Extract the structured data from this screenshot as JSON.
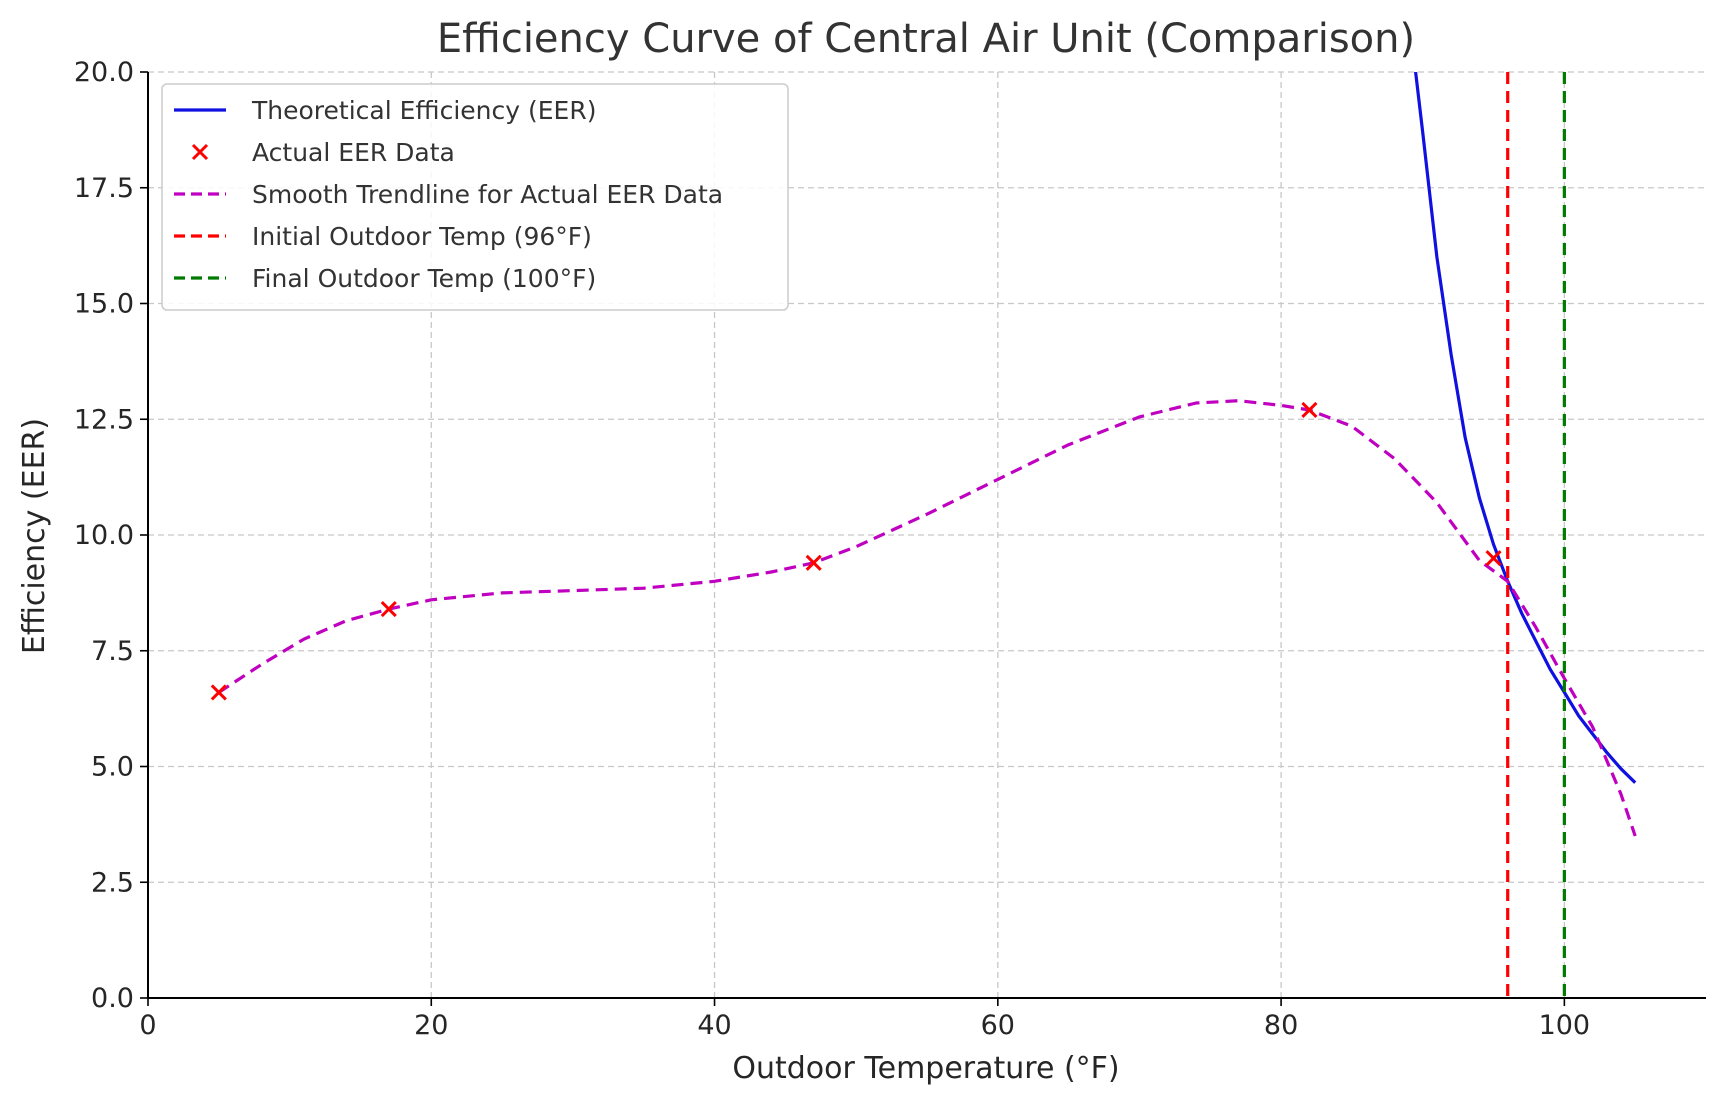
{
  "chart_data": {
    "type": "line",
    "title": "Efficiency Curve of Central Air Unit (Comparison)",
    "xlabel": "Outdoor Temperature (°F)",
    "ylabel": "Efficiency (EER)",
    "xlim": [
      0,
      110
    ],
    "ylim": [
      0,
      20
    ],
    "xticks": [
      0,
      20,
      40,
      60,
      80,
      100
    ],
    "xtick_labels": [
      "0",
      "20",
      "40",
      "60",
      "80",
      "100"
    ],
    "yticks": [
      0,
      2.5,
      5,
      7.5,
      10,
      12.5,
      15,
      17.5,
      20
    ],
    "ytick_labels": [
      "0.0",
      "2.5",
      "5.0",
      "7.5",
      "10.0",
      "12.5",
      "15.0",
      "17.5",
      "20.0"
    ],
    "grid": true,
    "legend_position": "top-left",
    "series": [
      {
        "name": "Theoretical Efficiency (EER)",
        "kind": "line",
        "style": "solid",
        "color": "#1010e0",
        "x": [
          89.5,
          90,
          91,
          92,
          93,
          94,
          95,
          96,
          97,
          98,
          99,
          100,
          101,
          102,
          103,
          104,
          105
        ],
        "y": [
          20.0,
          18.7,
          16.0,
          13.9,
          12.1,
          10.8,
          9.8,
          9.0,
          8.3,
          7.7,
          7.1,
          6.6,
          6.1,
          5.7,
          5.3,
          4.95,
          4.65
        ]
      },
      {
        "name": "Actual EER Data",
        "kind": "scatter",
        "marker": "x",
        "color": "#ff0000",
        "x": [
          5,
          17,
          47,
          82,
          95
        ],
        "y": [
          6.6,
          8.4,
          9.4,
          12.7,
          9.5
        ]
      },
      {
        "name": "Smooth Trendline for Actual EER Data",
        "kind": "line",
        "style": "dashed",
        "color": "#c000c0",
        "x": [
          5,
          8,
          11,
          14,
          17,
          20,
          25,
          30,
          35,
          40,
          44,
          47,
          50,
          55,
          60,
          65,
          70,
          74,
          77,
          80,
          82,
          85,
          88,
          91,
          94,
          96,
          98,
          100,
          102,
          104,
          105
        ],
        "y": [
          6.6,
          7.2,
          7.75,
          8.15,
          8.4,
          8.6,
          8.75,
          8.8,
          8.85,
          9.0,
          9.2,
          9.4,
          9.75,
          10.45,
          11.2,
          11.95,
          12.55,
          12.85,
          12.9,
          12.8,
          12.7,
          12.35,
          11.65,
          10.7,
          9.45,
          9.0,
          8.0,
          6.9,
          5.85,
          4.4,
          3.5
        ]
      },
      {
        "name": "Initial Outdoor Temp (96°F)",
        "kind": "vline",
        "style": "dashed",
        "color": "#ff0000",
        "x": 96
      },
      {
        "name": "Final Outdoor Temp (100°F)",
        "kind": "vline",
        "style": "dashed",
        "color": "#007a00",
        "x": 100
      }
    ]
  }
}
